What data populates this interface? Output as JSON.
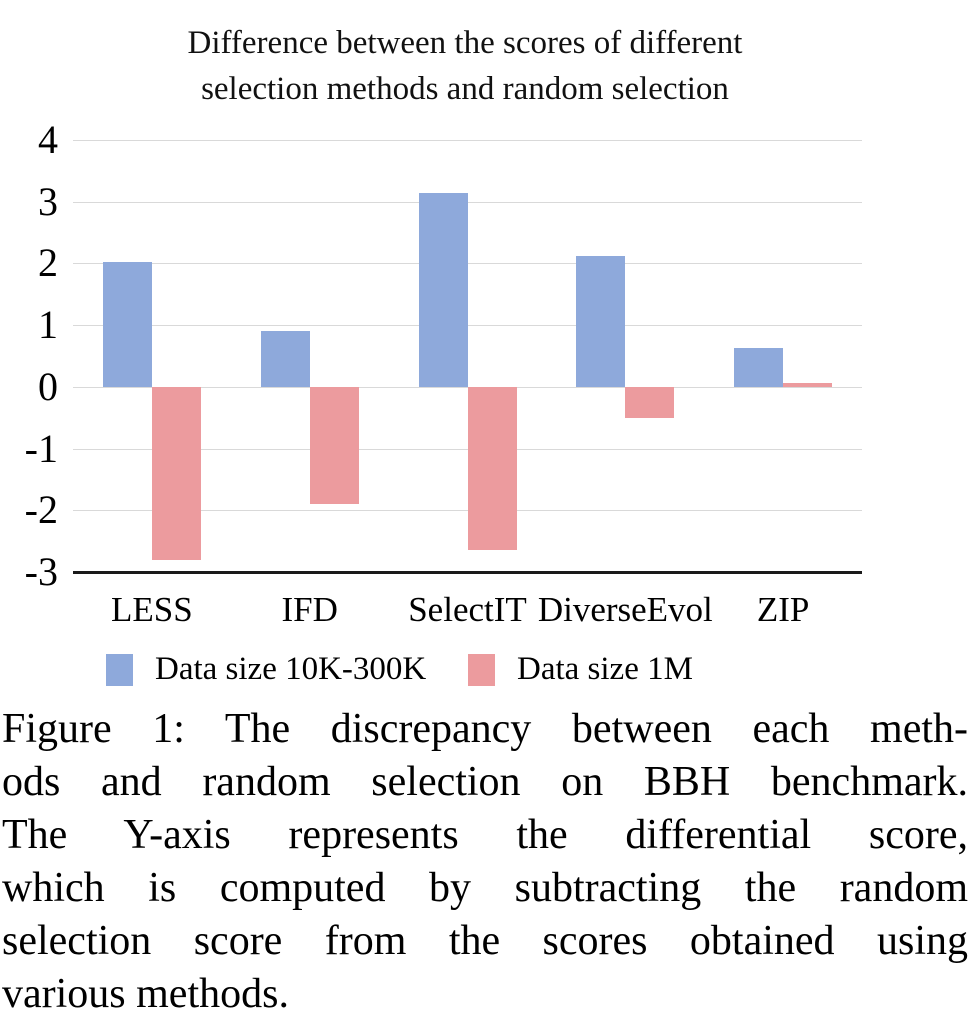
{
  "title": {
    "line1": "Difference between the scores of different",
    "line2": "selection methods and random selection"
  },
  "chart_data": {
    "type": "bar",
    "categories": [
      "LESS",
      "IFD",
      "SelectIT",
      "DiverseEvol",
      "ZIP"
    ],
    "series": [
      {
        "name": "Data size 10K-300K",
        "color": "#8EA9DB",
        "values": [
          2.03,
          0.9,
          3.14,
          2.12,
          0.63
        ]
      },
      {
        "name": "Data size 1M",
        "color": "#EC9B9E",
        "values": [
          -2.8,
          -1.9,
          -2.65,
          -0.51,
          0.06
        ]
      }
    ],
    "title": "Difference between the scores of different selection methods and random selection",
    "xlabel": "",
    "ylabel": "",
    "ylim": [
      -3,
      4
    ],
    "yticks": [
      4,
      3,
      2,
      1,
      0,
      -1,
      -2,
      -3
    ],
    "grid": true,
    "legend_position": "bottom"
  },
  "colors": {
    "series1": "#8EA9DB",
    "series2": "#EC9B9E",
    "gridline": "#D9D9D9",
    "axis": "#1A1A1A"
  },
  "caption": {
    "lines": [
      "Figure 1: The discrepancy between each meth-",
      "ods and random selection on BBH benchmark.",
      "The Y-axis represents the differential score,",
      "which is computed by subtracting the random",
      "selection score from the scores obtained using",
      "various methods."
    ]
  }
}
